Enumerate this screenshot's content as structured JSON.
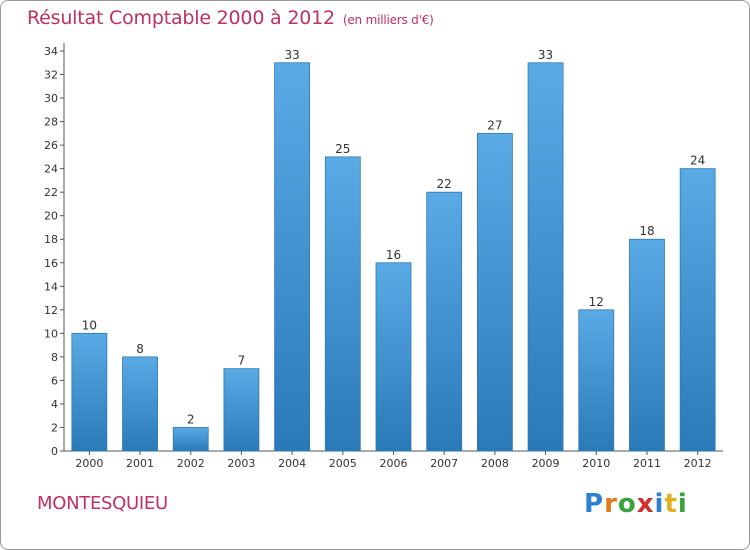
{
  "chart_data": {
    "type": "bar",
    "title": "Résultat Comptable 2000 à 2012",
    "subtitle": "(en milliers d'€)",
    "categories": [
      "2000",
      "2001",
      "2002",
      "2003",
      "2004",
      "2005",
      "2006",
      "2007",
      "2008",
      "2009",
      "2010",
      "2011",
      "2012"
    ],
    "values": [
      10,
      8,
      2,
      7,
      33,
      25,
      16,
      22,
      27,
      33,
      12,
      18,
      24
    ],
    "ylim": [
      0,
      34
    ],
    "yticks": [
      0,
      2,
      4,
      6,
      8,
      10,
      12,
      14,
      16,
      18,
      20,
      22,
      24,
      26,
      28,
      30,
      32,
      34
    ],
    "xlabel": "",
    "ylabel": "",
    "grid": false,
    "colors": {
      "bar_light": "#5aaae6",
      "bar_dark": "#2a7ab8",
      "axis": "#555555"
    }
  },
  "footer": {
    "commune": "MONTESQUIEU",
    "logo": [
      "P",
      "r",
      "o",
      "x",
      "i",
      "t",
      "i"
    ],
    "logo_colors": [
      "#2e7fd0",
      "#e07a1a",
      "#3aa23a",
      "#d03030",
      "#2e7fd0",
      "#e0b020",
      "#3aa23a"
    ]
  }
}
